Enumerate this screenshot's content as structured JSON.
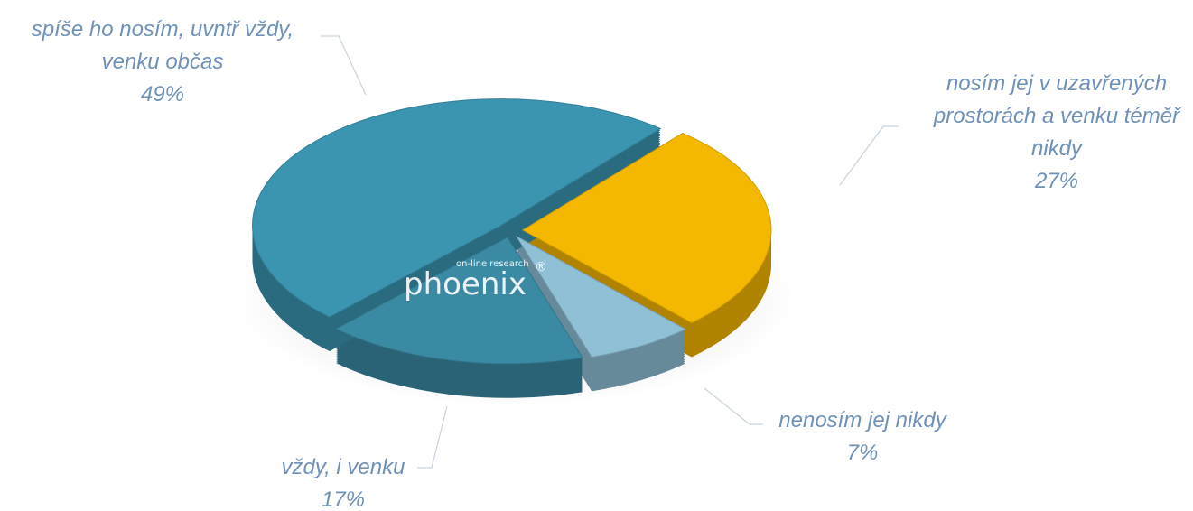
{
  "chart_data": {
    "type": "pie",
    "categories": [
      "nosím jej v uzavřených\nprostorách a venku téměř\nnikdy",
      "nenosím jej nikdy",
      "vždy, i venku",
      "spíše ho nosím, uvntř vždy,\nvenku občas"
    ],
    "values": [
      27,
      7,
      17,
      49
    ],
    "value_labels": [
      "27%",
      "7%",
      "17%",
      "49%"
    ],
    "colors": [
      "#f5b800",
      "#8fc0d6",
      "#3a8aa4",
      "#3b95b1"
    ],
    "watermark": {
      "tagline": "on-line research",
      "brand": "phoenix",
      "mark": "®"
    }
  }
}
